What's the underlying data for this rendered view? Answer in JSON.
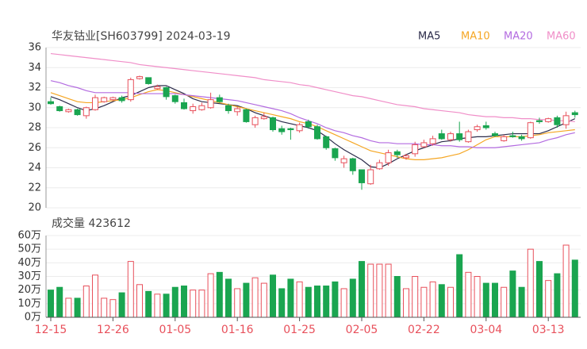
{
  "chart_data": [
    {
      "type": "candlestick",
      "title": "华友钴业[SH603799] 2024-03-19",
      "categories": [
        "12-15",
        null,
        null,
        null,
        null,
        null,
        null,
        "12-26",
        null,
        null,
        null,
        null,
        null,
        null,
        "01-05",
        null,
        null,
        null,
        null,
        null,
        null,
        "01-16",
        null,
        null,
        null,
        null,
        null,
        null,
        "01-25",
        null,
        null,
        null,
        null,
        null,
        null,
        "02-05",
        null,
        null,
        null,
        null,
        null,
        null,
        "02-22",
        null,
        null,
        null,
        null,
        null,
        null,
        "03-04",
        null,
        null,
        null,
        null,
        null,
        null,
        "03-13",
        null,
        null,
        null
      ],
      "open": [
        30.6,
        30.1,
        29.6,
        29.8,
        29.2,
        29.8,
        30.6,
        30.8,
        31.0,
        30.8,
        32.9,
        33.0,
        31.9,
        32.0,
        31.2,
        30.5,
        29.7,
        29.8,
        30.0,
        31.0,
        30.2,
        29.6,
        29.8,
        28.3,
        28.9,
        29.0,
        27.9,
        27.9,
        27.7,
        28.6,
        28.1,
        27.1,
        25.9,
        24.5,
        24.9,
        23.8,
        22.4,
        23.9,
        24.5,
        25.6,
        25.0,
        25.4,
        26.1,
        26.4,
        27.4,
        26.8,
        27.4,
        26.6,
        27.8,
        28.2,
        27.4,
        26.7,
        27.2,
        27.1,
        27.0,
        28.7,
        28.6,
        29.0,
        28.3,
        29.5
      ],
      "high": [
        31.0,
        30.2,
        29.9,
        29.9,
        30.1,
        31.3,
        31.1,
        31.1,
        31.2,
        33.0,
        33.2,
        33.0,
        32.3,
        32.1,
        31.3,
        30.9,
        30.4,
        30.5,
        31.5,
        31.3,
        30.4,
        30.1,
        29.9,
        29.2,
        29.5,
        29.1,
        28.2,
        28.0,
        28.5,
        28.8,
        28.3,
        27.2,
        26.0,
        25.2,
        25.0,
        23.8,
        24.3,
        24.8,
        25.8,
        25.8,
        25.4,
        26.6,
        26.8,
        27.2,
        27.8,
        27.6,
        28.6,
        27.8,
        28.3,
        28.6,
        27.6,
        27.3,
        27.6,
        27.3,
        28.6,
        29.0,
        29.0,
        29.2,
        29.6,
        29.7
      ],
      "low": [
        30.3,
        29.6,
        29.5,
        29.2,
        28.9,
        29.7,
        30.5,
        30.7,
        30.5,
        30.6,
        32.8,
        32.3,
        31.8,
        30.8,
        30.4,
        29.8,
        29.4,
        29.7,
        29.9,
        30.5,
        29.4,
        29.2,
        28.5,
        28.0,
        28.8,
        27.6,
        27.3,
        26.8,
        27.5,
        27.9,
        26.8,
        25.8,
        24.7,
        24.0,
        23.3,
        21.8,
        22.3,
        23.8,
        24.2,
        25.0,
        24.8,
        25.1,
        26.0,
        26.2,
        26.8,
        26.6,
        26.6,
        26.5,
        27.6,
        27.8,
        27.1,
        26.6,
        27.0,
        26.7,
        26.9,
        28.4,
        28.5,
        28.0,
        27.9,
        29.0
      ],
      "close": [
        30.4,
        29.7,
        29.8,
        29.3,
        30.0,
        31.0,
        31.0,
        31.0,
        30.7,
        32.8,
        33.1,
        32.4,
        32.1,
        31.1,
        30.6,
        29.9,
        30.1,
        30.2,
        30.8,
        30.6,
        29.7,
        29.9,
        28.6,
        29.0,
        29.1,
        27.8,
        27.6,
        27.8,
        28.3,
        28.1,
        26.9,
        26.0,
        25.0,
        24.9,
        23.7,
        22.5,
        23.8,
        24.5,
        25.5,
        25.3,
        25.2,
        26.3,
        26.5,
        26.9,
        26.9,
        27.4,
        26.8,
        27.6,
        28.1,
        28.0,
        27.2,
        27.1,
        27.1,
        26.9,
        28.5,
        28.6,
        28.9,
        28.3,
        29.2,
        29.3
      ],
      "up_color": "#e8505b",
      "down_color": "#1aa550",
      "ylim": [
        20,
        36
      ],
      "yticks": [
        20,
        22,
        24,
        26,
        28,
        30,
        32,
        34,
        36
      ],
      "grid": true,
      "series": [
        {
          "name": "MA5",
          "color": "#2b2b4a",
          "values": [
            31.1,
            30.8,
            30.4,
            30.0,
            29.7,
            29.9,
            30.2,
            30.6,
            31.0,
            31.2,
            31.6,
            32.0,
            32.2,
            32.2,
            31.8,
            31.4,
            30.9,
            30.6,
            30.5,
            30.4,
            30.3,
            30.2,
            29.9,
            29.5,
            29.2,
            28.9,
            28.6,
            28.4,
            28.2,
            28.0,
            27.7,
            27.1,
            26.4,
            25.8,
            25.3,
            24.8,
            24.1,
            24.0,
            24.4,
            24.9,
            25.3,
            25.7,
            26.0,
            26.3,
            26.6,
            26.7,
            26.9,
            27.0,
            27.1,
            27.1,
            27.2,
            27.3,
            27.4,
            27.4,
            27.4,
            27.4,
            27.7,
            28.1,
            28.5,
            28.9
          ]
        },
        {
          "name": "MA10",
          "color": "#f5a623",
          "values": [
            31.5,
            31.2,
            30.9,
            30.6,
            30.5,
            30.5,
            30.6,
            30.7,
            30.8,
            31.0,
            31.3,
            31.6,
            31.8,
            31.7,
            31.5,
            31.3,
            31.1,
            30.9,
            30.7,
            30.5,
            30.3,
            30.1,
            29.9,
            29.7,
            29.5,
            29.3,
            29.1,
            28.9,
            28.6,
            28.4,
            28.1,
            27.7,
            27.3,
            26.9,
            26.5,
            26.1,
            25.7,
            25.5,
            25.3,
            25.1,
            24.9,
            24.8,
            24.8,
            24.9,
            25.0,
            25.2,
            25.4,
            25.8,
            26.3,
            26.8,
            27.1,
            27.1,
            27.1,
            27.1,
            27.2,
            27.3,
            27.5,
            27.6,
            27.7,
            27.8
          ]
        },
        {
          "name": "MA20",
          "color": "#b36be0",
          "values": [
            32.7,
            32.5,
            32.2,
            32.0,
            31.7,
            31.5,
            31.5,
            31.5,
            31.5,
            31.5,
            31.4,
            31.4,
            31.4,
            31.4,
            31.4,
            31.3,
            31.2,
            31.1,
            31.0,
            30.9,
            30.8,
            30.7,
            30.5,
            30.3,
            30.1,
            29.9,
            29.7,
            29.4,
            29.0,
            28.7,
            28.4,
            28.0,
            27.7,
            27.5,
            27.2,
            27.0,
            26.7,
            26.5,
            26.5,
            26.4,
            26.4,
            26.4,
            26.3,
            26.3,
            26.2,
            26.2,
            26.1,
            26.1,
            26.0,
            26.0,
            26.0,
            26.1,
            26.2,
            26.3,
            26.4,
            26.5,
            26.8,
            27.0,
            27.3,
            27.5
          ]
        },
        {
          "name": "MA60",
          "color": "#f08ec8",
          "values": [
            35.4,
            35.3,
            35.2,
            35.1,
            35.0,
            34.9,
            34.8,
            34.7,
            34.6,
            34.5,
            34.3,
            34.2,
            34.1,
            34.0,
            33.9,
            33.8,
            33.7,
            33.6,
            33.5,
            33.4,
            33.3,
            33.2,
            33.1,
            33.0,
            32.8,
            32.7,
            32.6,
            32.5,
            32.3,
            32.2,
            32.0,
            31.8,
            31.6,
            31.4,
            31.2,
            31.1,
            30.9,
            30.7,
            30.5,
            30.3,
            30.2,
            30.1,
            29.9,
            29.8,
            29.7,
            29.6,
            29.5,
            29.3,
            29.2,
            29.1,
            29.1,
            29.0,
            29.0,
            28.9,
            28.9,
            28.8,
            28.8,
            28.7,
            28.7,
            28.6
          ]
        }
      ]
    },
    {
      "type": "bar",
      "title": "成交量 423612",
      "values": [
        20,
        22,
        14,
        14,
        23,
        31,
        14,
        13,
        18,
        41,
        24,
        19,
        17,
        17,
        22,
        23,
        20,
        20,
        32,
        33,
        28,
        21,
        25,
        29,
        25,
        31,
        21,
        28,
        26,
        22,
        23,
        23,
        26,
        21,
        28,
        41,
        39,
        39,
        39,
        30,
        21,
        30,
        22,
        26,
        24,
        22,
        46,
        33,
        30,
        25,
        25,
        22,
        34,
        22,
        50,
        41,
        27,
        32,
        53,
        42
      ],
      "ylim": [
        0,
        60
      ],
      "yticks": [
        {
          "value": 0,
          "label": "0万"
        },
        {
          "value": 10,
          "label": "10万"
        },
        {
          "value": 20,
          "label": "20万"
        },
        {
          "value": 30,
          "label": "30万"
        },
        {
          "value": 40,
          "label": "40万"
        },
        {
          "value": 50,
          "label": "50万"
        },
        {
          "value": 60,
          "label": "60万"
        }
      ],
      "grid": true
    }
  ]
}
